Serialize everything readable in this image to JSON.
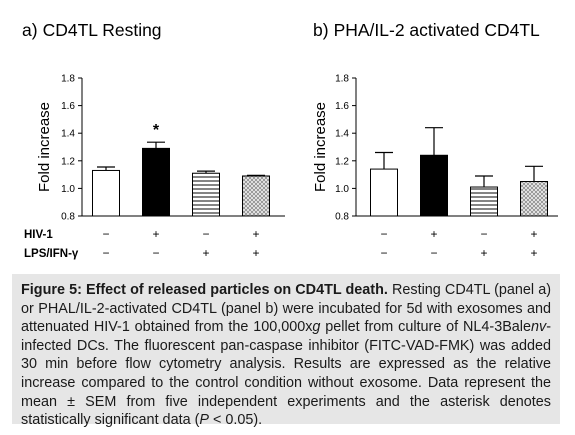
{
  "chart_data": [
    {
      "type": "bar",
      "panel_label": "a)",
      "title": "CD4TL Resting",
      "ylabel": "Fold increase",
      "ylim": [
        0.8,
        1.8
      ],
      "yticks": [
        "0.8",
        "1.0",
        "1.2",
        "1.4",
        "1.6",
        "1.8"
      ],
      "values": [
        1.13,
        1.29,
        1.11,
        1.09
      ],
      "errors": [
        0.025,
        0.045,
        0.015,
        0.005
      ],
      "fills": [
        "white",
        "black",
        "horizontal-stripes",
        "crosshatch"
      ],
      "annotation": {
        "text": "*",
        "bar_index": 1
      },
      "rows": [
        {
          "label": "HIV-1",
          "marks": [
            "−",
            "+",
            "−",
            "+"
          ]
        },
        {
          "label": "LPS/IFN-γ",
          "marks": [
            "−",
            "−",
            "+",
            "+"
          ]
        }
      ]
    },
    {
      "type": "bar",
      "panel_label": "b)",
      "title": "PHA/IL-2 activated CD4TL",
      "ylabel": "Fold increase",
      "ylim": [
        0.8,
        1.8
      ],
      "yticks": [
        "0.8",
        "1.0",
        "1.2",
        "1.4",
        "1.6",
        "1.8"
      ],
      "values": [
        1.14,
        1.24,
        1.01,
        1.05
      ],
      "errors": [
        0.12,
        0.2,
        0.08,
        0.11
      ],
      "fills": [
        "white",
        "black",
        "horizontal-stripes",
        "crosshatch"
      ],
      "rows": [
        {
          "label": "",
          "marks": [
            "−",
            "+",
            "−",
            "+"
          ]
        },
        {
          "label": "",
          "marks": [
            "−",
            "−",
            "+",
            "+"
          ]
        }
      ]
    }
  ],
  "caption": {
    "bold": "Figure 5: Effect of released particles on CD4TL death.",
    "part1": " Resting CD4TL (panel a) or PHAL/IL-2-activated CD4TL (panel b) were incubated for 5d with exosomes and attenuated HIV-1 obtained from the 100,000x",
    "italic_g": "g",
    "part2": " pellet from culture of NL4-3Bale",
    "italic_env": "nv",
    "part3": "-infected DCs. The fluorescent pan-caspase inhibitor (FITC-VAD-FMK) was added 30 min before flow cytometry analysis. Results are expressed as the relative increase compared to the control condition without exosome. Data represent the mean ± SEM from five independent experiments and the asterisk denotes statistically significant data (",
    "italic_p": "P",
    "part4": " < 0.05)."
  }
}
